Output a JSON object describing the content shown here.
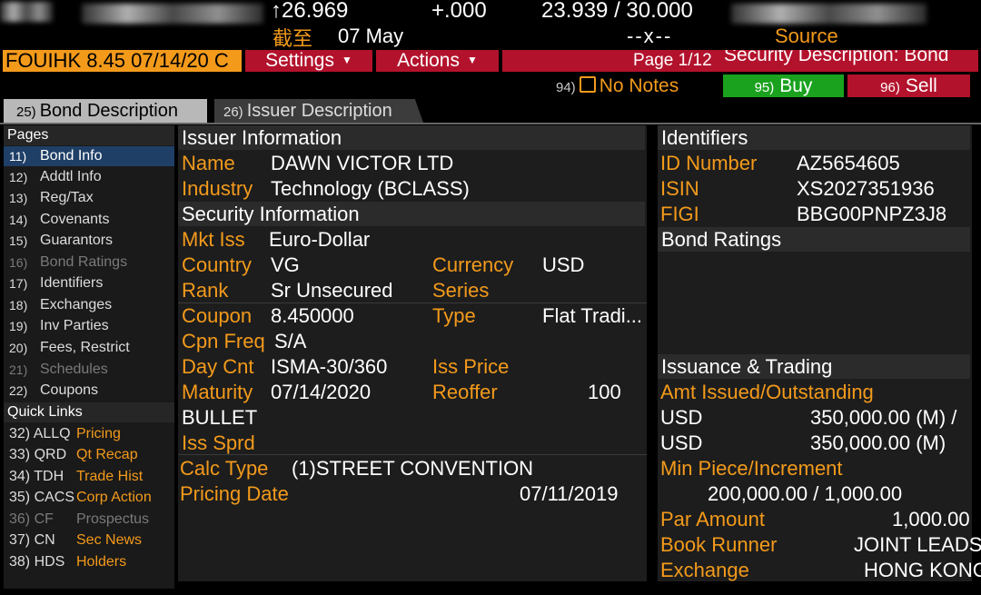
{
  "ticker": {
    "price": "↑26.969",
    "change": "+.000",
    "bid_ask": "23.939 / 30.000",
    "as_of": "截至",
    "date": "07 May",
    "dash": "--x--",
    "source": "Source"
  },
  "toolbar": {
    "security": "FOUIHK 8.45 07/14/20 C",
    "settings": "Settings",
    "actions": "Actions",
    "page": "Page 1/12",
    "page_title": "Security Description: Bond"
  },
  "actions_row": {
    "notes_num": "94)",
    "notes": "No Notes",
    "buy_num": "95)",
    "buy": "Buy",
    "sell_num": "96)",
    "sell": "Sell"
  },
  "tabs": [
    {
      "num": "25)",
      "label": "Bond Description"
    },
    {
      "num": "26)",
      "label": "Issuer Description"
    }
  ],
  "sidebar": {
    "pages_header": "Pages",
    "pages": [
      {
        "num": "11)",
        "label": "Bond Info"
      },
      {
        "num": "12)",
        "label": "Addtl Info"
      },
      {
        "num": "13)",
        "label": "Reg/Tax"
      },
      {
        "num": "14)",
        "label": "Covenants"
      },
      {
        "num": "15)",
        "label": "Guarantors"
      },
      {
        "num": "16)",
        "label": "Bond Ratings"
      },
      {
        "num": "17)",
        "label": "Identifiers"
      },
      {
        "num": "18)",
        "label": "Exchanges"
      },
      {
        "num": "19)",
        "label": "Inv Parties"
      },
      {
        "num": "20)",
        "label": "Fees, Restrict"
      },
      {
        "num": "21)",
        "label": "Schedules"
      },
      {
        "num": "22)",
        "label": "Coupons"
      }
    ],
    "quick_header": "Quick Links",
    "quick": [
      {
        "code": "32) ALLQ",
        "label": "Pricing"
      },
      {
        "code": "33) QRD",
        "label": "Qt Recap"
      },
      {
        "code": "34) TDH",
        "label": "Trade Hist"
      },
      {
        "code": "35) CACS",
        "label": "Corp Action"
      },
      {
        "code": "36) CF",
        "label": "Prospectus"
      },
      {
        "code": "37) CN",
        "label": "Sec News"
      },
      {
        "code": "38) HDS",
        "label": "Holders"
      }
    ]
  },
  "issuer": {
    "header": "Issuer Information",
    "name_label": "Name",
    "name": "DAWN VICTOR LTD",
    "industry_label": "Industry",
    "industry": "Technology (BCLASS)"
  },
  "security": {
    "header": "Security Information",
    "mkt_iss_label": "Mkt Iss",
    "mkt_iss": "Euro-Dollar",
    "country_label": "Country",
    "country": "VG",
    "currency_label": "Currency",
    "currency": "USD",
    "rank_label": "Rank",
    "rank": "Sr Unsecured",
    "series_label": "Series",
    "coupon_label": "Coupon",
    "coupon": "8.450000",
    "type_label": "Type",
    "type": "Flat Tradi...",
    "cpn_freq_label": "Cpn Freq",
    "cpn_freq": "S/A",
    "day_cnt_label": "Day Cnt",
    "day_cnt": "ISMA-30/360",
    "iss_price_label": "Iss Price",
    "maturity_label": "Maturity",
    "maturity": "07/14/2020",
    "reoffer_label": "Reoffer",
    "reoffer": "100",
    "bullet": "BULLET",
    "iss_sprd_label": "Iss Sprd",
    "calc_type_label": "Calc Type",
    "calc_type": "(1)STREET CONVENTION",
    "pricing_date_label": "Pricing Date",
    "pricing_date": "07/11/2019"
  },
  "identifiers": {
    "header": "Identifiers",
    "id_label": "ID Number",
    "id": "AZ5654605",
    "isin_label": "ISIN",
    "isin": "XS2027351936",
    "figi_label": "FIGI",
    "figi": "BBG00PNPZ3J8"
  },
  "ratings": {
    "header": "Bond Ratings"
  },
  "issuance": {
    "header": "Issuance & Trading",
    "amt_label": "Amt Issued/Outstanding",
    "amt1_ccy": "USD",
    "amt1": "350,000.00 (M) /",
    "amt2_ccy": "USD",
    "amt2": "350,000.00 (M)",
    "min_label": "Min Piece/Increment",
    "min": "200,000.00 / 1,000.00",
    "par_label": "Par Amount",
    "par": "1,000.00",
    "runner_label": "Book Runner",
    "runner": "JOINT LEADS",
    "exchange_label": "Exchange",
    "exchange": "HONG KONG"
  }
}
